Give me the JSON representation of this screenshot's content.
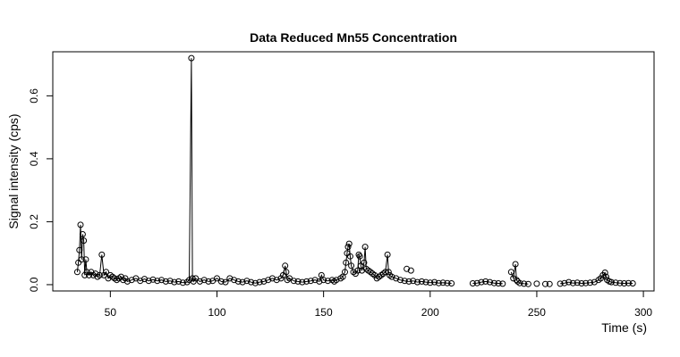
{
  "chart_data": {
    "type": "line",
    "title": "Data Reduced Mn55 Concentration",
    "xlabel": "Time (s)",
    "ylabel": "Signal intensity (cps)",
    "xlim": [
      23,
      305
    ],
    "ylim": [
      -0.02,
      0.74
    ],
    "xticks": [
      50,
      100,
      150,
      200,
      250,
      300
    ],
    "yticks": [
      0.0,
      0.2,
      0.4,
      0.6
    ],
    "xtick_labels": [
      "50",
      "100",
      "150",
      "200",
      "250",
      "300"
    ],
    "ytick_labels": [
      "0.0",
      "0.2",
      "0.4",
      "0.6"
    ],
    "grid": false,
    "legend": "none",
    "style": "points-and-lines",
    "series": [
      {
        "segments": [
          [
            [
              34.5,
              0.04
            ],
            [
              35,
              0.07
            ],
            [
              35.5,
              0.11
            ],
            [
              36,
              0.19
            ],
            [
              36.5,
              0.08
            ],
            [
              37,
              0.16
            ],
            [
              37.5,
              0.14
            ],
            [
              38,
              0.03
            ],
            [
              38.5,
              0.08
            ],
            [
              39,
              0.04
            ],
            [
              40,
              0.03
            ],
            [
              41,
              0.04
            ],
            [
              42,
              0.03
            ],
            [
              43,
              0.035
            ],
            [
              44,
              0.025
            ],
            [
              45,
              0.03
            ],
            [
              46,
              0.095
            ],
            [
              47,
              0.03
            ],
            [
              48,
              0.04
            ],
            [
              49,
              0.02
            ],
            [
              50,
              0.03
            ],
            [
              51,
              0.025
            ],
            [
              52,
              0.02
            ],
            [
              53,
              0.015
            ],
            [
              54,
              0.02
            ],
            [
              55,
              0.025
            ],
            [
              56,
              0.015
            ],
            [
              57,
              0.02
            ],
            [
              58,
              0.01
            ],
            [
              60,
              0.015
            ],
            [
              62,
              0.02
            ],
            [
              64,
              0.012
            ],
            [
              66,
              0.018
            ],
            [
              68,
              0.012
            ],
            [
              70,
              0.016
            ],
            [
              72,
              0.012
            ],
            [
              74,
              0.015
            ],
            [
              76,
              0.01
            ],
            [
              78,
              0.012
            ],
            [
              80,
              0.008
            ],
            [
              82,
              0.01
            ],
            [
              84,
              0.006
            ],
            [
              86,
              0.008
            ],
            [
              87,
              0.015
            ],
            [
              88,
              0.72
            ],
            [
              88.5,
              0.02
            ],
            [
              89,
              0.01
            ],
            [
              90,
              0.02
            ],
            [
              92,
              0.01
            ],
            [
              94,
              0.015
            ],
            [
              96,
              0.01
            ],
            [
              98,
              0.012
            ],
            [
              100,
              0.02
            ],
            [
              102,
              0.01
            ],
            [
              104,
              0.008
            ],
            [
              106,
              0.02
            ],
            [
              108,
              0.015
            ],
            [
              110,
              0.01
            ],
            [
              112,
              0.008
            ],
            [
              114,
              0.012
            ],
            [
              116,
              0.008
            ],
            [
              118,
              0.005
            ],
            [
              120,
              0.008
            ],
            [
              122,
              0.01
            ],
            [
              124,
              0.015
            ],
            [
              126,
              0.02
            ],
            [
              128,
              0.015
            ],
            [
              130,
              0.02
            ],
            [
              131,
              0.03
            ],
            [
              132,
              0.06
            ],
            [
              132.5,
              0.04
            ],
            [
              133,
              0.015
            ],
            [
              134,
              0.02
            ],
            [
              136,
              0.012
            ],
            [
              138,
              0.01
            ],
            [
              140,
              0.008
            ],
            [
              142,
              0.01
            ],
            [
              144,
              0.012
            ],
            [
              146,
              0.015
            ],
            [
              148,
              0.01
            ],
            [
              149,
              0.03
            ],
            [
              150,
              0.015
            ],
            [
              152,
              0.012
            ],
            [
              154,
              0.015
            ],
            [
              155,
              0.01
            ],
            [
              156,
              0.015
            ],
            [
              158,
              0.02
            ],
            [
              159,
              0.025
            ],
            [
              160,
              0.04
            ],
            [
              160.5,
              0.07
            ],
            [
              161,
              0.1
            ],
            [
              161.5,
              0.12
            ],
            [
              162,
              0.13
            ],
            [
              162.5,
              0.09
            ],
            [
              163,
              0.06
            ],
            [
              164,
              0.04
            ],
            [
              165,
              0.035
            ],
            [
              166,
              0.045
            ],
            [
              166.5,
              0.095
            ],
            [
              167,
              0.09
            ],
            [
              167.5,
              0.06
            ],
            [
              168,
              0.045
            ],
            [
              169,
              0.07
            ],
            [
              169.5,
              0.12
            ],
            [
              170,
              0.05
            ],
            [
              171,
              0.045
            ],
            [
              172,
              0.04
            ],
            [
              173,
              0.035
            ],
            [
              174,
              0.03
            ],
            [
              175,
              0.02
            ],
            [
              176,
              0.025
            ],
            [
              177,
              0.03
            ],
            [
              178,
              0.035
            ],
            [
              179,
              0.04
            ],
            [
              180,
              0.095
            ],
            [
              180.5,
              0.04
            ],
            [
              181,
              0.03
            ],
            [
              182,
              0.025
            ],
            [
              184,
              0.02
            ],
            [
              186,
              0.015
            ],
            [
              188,
              0.012
            ],
            [
              190,
              0.01
            ],
            [
              192,
              0.012
            ],
            [
              194,
              0.008
            ],
            [
              196,
              0.01
            ],
            [
              198,
              0.008
            ],
            [
              200,
              0.006
            ],
            [
              202,
              0.008
            ],
            [
              204,
              0.005
            ],
            [
              206,
              0.006
            ],
            [
              208,
              0.005
            ],
            [
              210,
              0.004
            ]
          ],
          [
            [
              220,
              0.004
            ],
            [
              222,
              0.005
            ],
            [
              224,
              0.008
            ],
            [
              226,
              0.01
            ],
            [
              228,
              0.008
            ],
            [
              230,
              0.005
            ],
            [
              232,
              0.004
            ],
            [
              234,
              0.003
            ]
          ],
          [
            [
              238,
              0.04
            ],
            [
              239,
              0.02
            ],
            [
              240,
              0.065
            ],
            [
              240.5,
              0.015
            ],
            [
              241,
              0.01
            ],
            [
              242,
              0.005
            ],
            [
              244,
              0.003
            ],
            [
              246,
              0.002
            ]
          ],
          [
            [
              261,
              0.003
            ],
            [
              263,
              0.005
            ],
            [
              265,
              0.008
            ],
            [
              267,
              0.005
            ],
            [
              269,
              0.006
            ],
            [
              271,
              0.004
            ],
            [
              273,
              0.005
            ],
            [
              275,
              0.006
            ],
            [
              277,
              0.008
            ],
            [
              279,
              0.015
            ],
            [
              280,
              0.02
            ],
            [
              281,
              0.03
            ],
            [
              282,
              0.038
            ],
            [
              282.5,
              0.025
            ],
            [
              283,
              0.015
            ],
            [
              284,
              0.01
            ],
            [
              285,
              0.008
            ],
            [
              287,
              0.006
            ],
            [
              289,
              0.005
            ],
            [
              291,
              0.004
            ],
            [
              293,
              0.005
            ],
            [
              295,
              0.004
            ]
          ]
        ],
        "isolated_points": [
          [
            189,
            0.05
          ],
          [
            191,
            0.045
          ],
          [
            250,
            0.003
          ],
          [
            254,
            0.002
          ],
          [
            256,
            0.002
          ]
        ]
      }
    ]
  }
}
